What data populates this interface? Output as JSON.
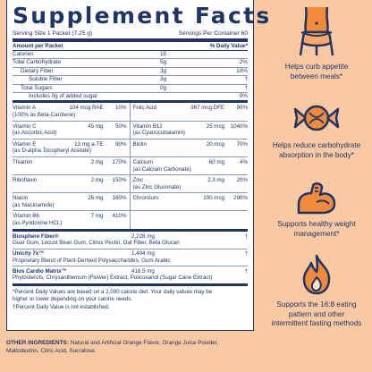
{
  "title": "Supplement Facts",
  "serving_size": "Serving Size 1 Packet (7.25 g)",
  "servings_per_container": "Servings Per Container 60",
  "header": {
    "left": "Amount per Packet",
    "right": "% Daily Value*"
  },
  "macros": [
    {
      "name": "Calories",
      "amount": "15",
      "dv": ""
    },
    {
      "name": "Total Carbohydrate",
      "amount": "5g",
      "dv": "2%"
    },
    {
      "name": "Dietary Fiber",
      "amount": "3g",
      "dv": "10%"
    },
    {
      "name": "Soluble Fiber",
      "amount": "3g",
      "dv": "†"
    },
    {
      "name": "Total Sugars",
      "amount": "0g",
      "dv": "†"
    },
    {
      "name": "Includes 0g of added sugar",
      "amount": "",
      "dv": "0%"
    }
  ],
  "vitamins": [
    {
      "name": "Vitamin A",
      "amount": "104 mcg RAE",
      "dv": "10%",
      "sub": "(100% as Beta-Carotene)"
    },
    {
      "name": "Folic Acid",
      "amount": "367 mcg DFE",
      "dv": "90%",
      "sub": ""
    },
    {
      "name": "Vitamin C",
      "amount": "45 mg",
      "dv": "50%",
      "sub": "(as Ascorbic Acid)"
    },
    {
      "name": "Vitamin B12",
      "amount": "25 mcg",
      "dv": "1040%",
      "sub": "(as Cyanocobalamin)"
    },
    {
      "name": "Vitamin E",
      "amount": "13 mg a-TE",
      "dv": "90%",
      "sub": "(as D-alpha Tocopheryl Acetate)"
    },
    {
      "name": "Biotin",
      "amount": "20 mcg",
      "dv": "70%",
      "sub": ""
    },
    {
      "name": "Thiamin",
      "amount": "2 mg",
      "dv": "170%",
      "sub": ""
    },
    {
      "name": "Calcium",
      "amount": "60 mg",
      "dv": "4%",
      "sub": "(as Calcium Carbonate)"
    },
    {
      "name": "Riboflavin",
      "amount": "2 mg",
      "dv": "150%",
      "sub": ""
    },
    {
      "name": "Zinc",
      "amount": "2.3 mg",
      "dv": "20%",
      "sub": "(as Zinc Gluconate)"
    },
    {
      "name": "Niacin",
      "amount": "26 mg",
      "dv": "160%",
      "sub": "(as Niacinamide)"
    },
    {
      "name": "Chromium",
      "amount": "100 mcg",
      "dv": "290%",
      "sub": ""
    },
    {
      "name": "Vitamin B6",
      "amount": "7 mg",
      "dv": "410%",
      "sub": "(as Pyridoxine HCL)"
    },
    {
      "name": "",
      "amount": "",
      "dv": "",
      "sub": ""
    }
  ],
  "blends": [
    {
      "name": "Biosphere Fiber®",
      "amount": "2,228 mg",
      "dv": "†",
      "desc": "Guar Gum, Locust Bean Gum, Citrus Pectin, Oat Fiber, Beta Glucan"
    },
    {
      "name": "Unicity 7x™",
      "amount": "1,404 mg",
      "dv": "†",
      "desc": "Proprietary Blend of Plant-Derived Polysaccharides, Gum Arabic"
    },
    {
      "name": "Bios Cardio Matrix™",
      "amount": "418.5 mg",
      "dv": "†",
      "desc": "Phytosterols, Chrysanthemum (Flower) Extract, Policosanol (Sugar Cane Extract)"
    }
  ],
  "footnotes": {
    "line1": "*Percent Daily Values are based on a 2,000 calorie diet. Your daily values may be",
    "line2": "higher or lower depending on your calorie needs.",
    "line3": "†Percent Daily Value is not established."
  },
  "other": {
    "label": "OTHER INGREDIENTS:",
    "text1": " Natural and Artificial Orange Flavor, Orange Juice Powder,",
    "text2": "Maltodextrin, Citric Acid, Sucralose."
  },
  "benefits": [
    {
      "icon": "waist-measure-icon",
      "line1": "Helps curb appetite",
      "line2": "between meals*"
    },
    {
      "icon": "candy-icon",
      "line1": "Helps reduce carbohydrate",
      "line2": "absorption in the body*"
    },
    {
      "icon": "flexed-arm-icon",
      "line1": "Supports healthy weight",
      "line2": "management*"
    },
    {
      "icon": "flame-icon",
      "line1": "Supports the 16:8 eating",
      "line2": "pattern and other",
      "line3": "intermittent fasting methods"
    }
  ],
  "colors": {
    "background": "#f9c9a3",
    "navy": "#1f3566",
    "accent_orange": "#f28a3c"
  }
}
